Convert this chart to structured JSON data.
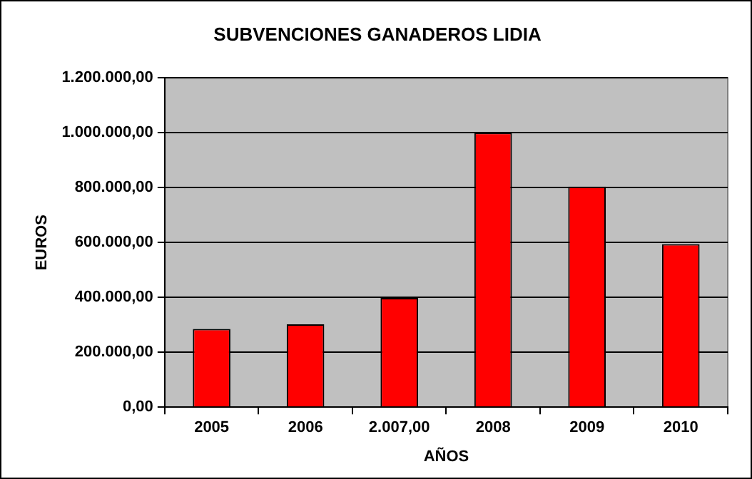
{
  "chart_data": {
    "type": "bar",
    "title": "SUBVENCIONES GANADEROS LIDIA",
    "xlabel": "AÑOS",
    "ylabel": "EUROS",
    "categories": [
      "2005",
      "2006",
      "2.007,00",
      "2008",
      "2009",
      "2010"
    ],
    "values": [
      285000,
      302000,
      398000,
      1000000,
      804000,
      594000
    ],
    "color": "#ff0000",
    "ylim": [
      0,
      1200000
    ],
    "yticks": [
      {
        "value": 0,
        "label": "0,00"
      },
      {
        "value": 200000,
        "label": "200.000,00"
      },
      {
        "value": 400000,
        "label": "400.000,00"
      },
      {
        "value": 600000,
        "label": "600.000,00"
      },
      {
        "value": 800000,
        "label": "800.000,00"
      },
      {
        "value": 1000000,
        "label": "1.000.000,00"
      },
      {
        "value": 1200000,
        "label": "1.200.000,00"
      }
    ],
    "grid": "y",
    "legend": false
  }
}
